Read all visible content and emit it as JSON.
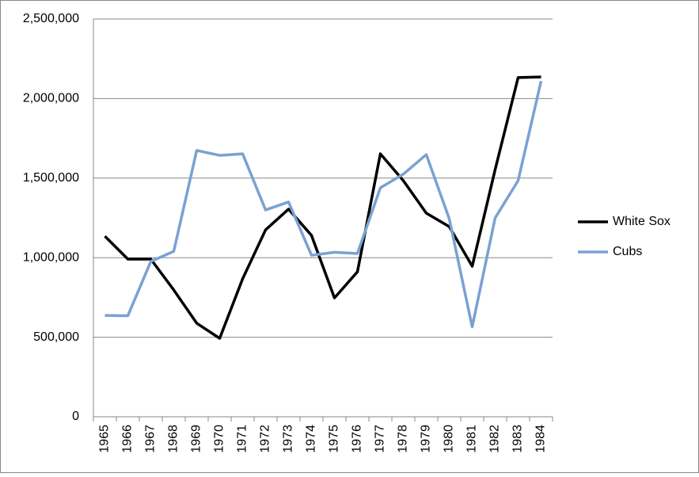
{
  "chart_data": {
    "type": "line",
    "categories": [
      "1965",
      "1966",
      "1967",
      "1968",
      "1969",
      "1970",
      "1971",
      "1972",
      "1973",
      "1974",
      "1975",
      "1976",
      "1977",
      "1978",
      "1979",
      "1980",
      "1981",
      "1982",
      "1983",
      "1984"
    ],
    "series": [
      {
        "name": "White Sox",
        "color": "#000000",
        "values": [
          1135000,
          991000,
          991000,
          797000,
          588000,
          493000,
          867000,
          1175000,
          1305000,
          1140000,
          747000,
          911000,
          1653000,
          1484000,
          1280000,
          1195000,
          946000,
          1554000,
          2132000,
          2136000
        ]
      },
      {
        "name": "Cubs",
        "color": "#7aa1d3",
        "values": [
          637000,
          635000,
          976000,
          1040000,
          1674000,
          1643000,
          1653000,
          1300000,
          1350000,
          1015000,
          1034000,
          1026000,
          1439000,
          1525000,
          1648000,
          1245000,
          565000,
          1250000,
          1484000,
          2110000
        ]
      }
    ],
    "ylim": [
      0,
      2500000
    ],
    "yticks": [
      0,
      {
        "value": 500000,
        "label": "500,000"
      },
      {
        "value": 1000000,
        "label": "1,000,000"
      },
      {
        "value": 1500000,
        "label": "1,500,000"
      },
      {
        "value": 2000000,
        "label": "2,000,000"
      },
      {
        "value": 2500000,
        "label": "2,500,000"
      }
    ],
    "grid": true,
    "legend": "right"
  }
}
